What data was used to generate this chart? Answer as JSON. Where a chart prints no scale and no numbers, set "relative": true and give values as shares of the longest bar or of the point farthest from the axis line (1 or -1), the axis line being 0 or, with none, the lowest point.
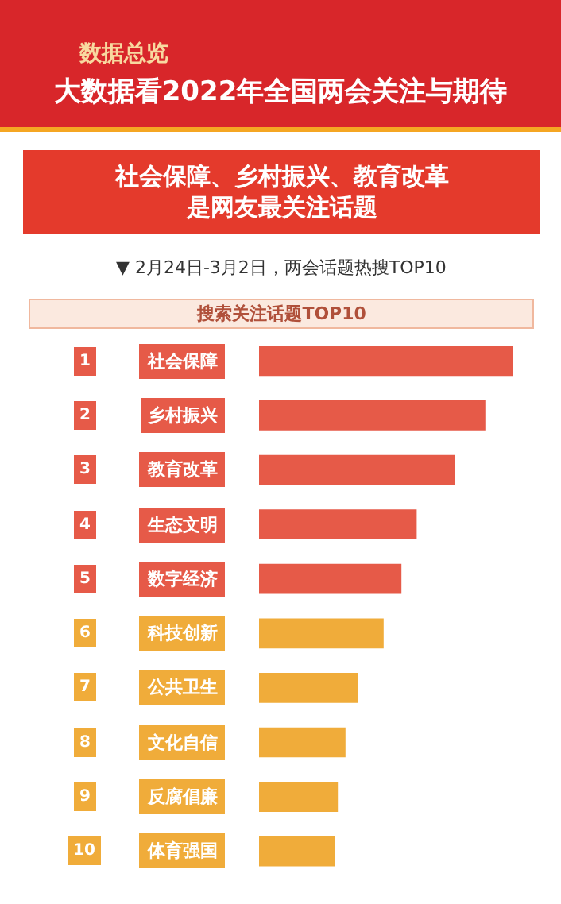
{
  "chart_data": {
    "type": "bar",
    "orientation": "horizontal",
    "relative": true,
    "title": "大数据看2022年全国两会关注与期待",
    "subtitle": "社会保障、乡村振兴、教育改革是网友最关注话题",
    "annotations": [
      "数据总览",
      "▼ 2月24日-3月2日，两会话题热搜TOP10",
      "搜索关注话题TOP10",
      "1",
      "2",
      "3",
      "4",
      "5",
      "6",
      "7",
      "8",
      "9",
      "10"
    ],
    "categories": [
      "社会保障",
      "乡村振兴",
      "教育改革",
      "生态文明",
      "数字经济",
      "科技创新",
      "公共卫生",
      "文化自信",
      "反腐倡廉",
      "体育强国"
    ],
    "values": [
      1,
      0.89,
      0.77,
      0.62,
      0.56,
      0.49,
      0.39,
      0.34,
      0.31,
      0.3
    ],
    "colors": [
      "#e65a48",
      "#e65a48",
      "#e65a48",
      "#e65a48",
      "#e65a48",
      "#f0ac3a",
      "#f0ac3a",
      "#f0ac3a",
      "#f0ac3a",
      "#f0ac3a"
    ],
    "legend": false
  }
}
